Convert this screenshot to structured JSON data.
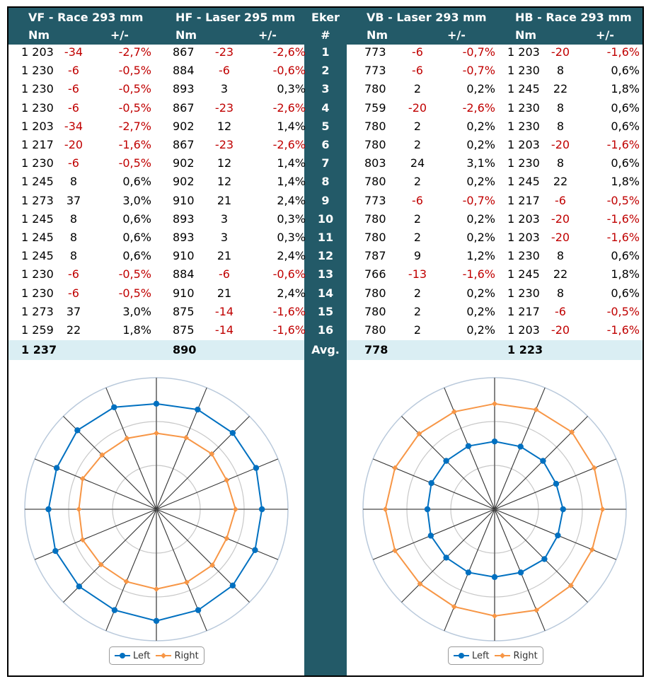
{
  "headers": {
    "vf_title": "VF - Race 293 mm",
    "hf_title": "HF - Laser 295 mm",
    "eker": "Eker",
    "vb_title": "VB - Laser 293 mm",
    "hb_title": "HB - Race 293 mm",
    "nm": "Nm",
    "pm": "+/-",
    "hash": "#"
  },
  "rows": [
    {
      "n": "1",
      "vf": [
        "1 203",
        "-34",
        "-2,7%"
      ],
      "hf": [
        "867",
        "-23",
        "-2,6%"
      ],
      "vb": [
        "773",
        "-6",
        "-0,7%"
      ],
      "hb": [
        "1 203",
        "-20",
        "-1,6%"
      ]
    },
    {
      "n": "2",
      "vf": [
        "1 230",
        "-6",
        "-0,5%"
      ],
      "hf": [
        "884",
        "-6",
        "-0,6%"
      ],
      "vb": [
        "773",
        "-6",
        "-0,7%"
      ],
      "hb": [
        "1 230",
        "8",
        "0,6%"
      ]
    },
    {
      "n": "3",
      "vf": [
        "1 230",
        "-6",
        "-0,5%"
      ],
      "hf": [
        "893",
        "3",
        "0,3%"
      ],
      "vb": [
        "780",
        "2",
        "0,2%"
      ],
      "hb": [
        "1 245",
        "22",
        "1,8%"
      ]
    },
    {
      "n": "4",
      "vf": [
        "1 230",
        "-6",
        "-0,5%"
      ],
      "hf": [
        "867",
        "-23",
        "-2,6%"
      ],
      "vb": [
        "759",
        "-20",
        "-2,6%"
      ],
      "hb": [
        "1 230",
        "8",
        "0,6%"
      ]
    },
    {
      "n": "5",
      "vf": [
        "1 203",
        "-34",
        "-2,7%"
      ],
      "hf": [
        "902",
        "12",
        "1,4%"
      ],
      "vb": [
        "780",
        "2",
        "0,2%"
      ],
      "hb": [
        "1 230",
        "8",
        "0,6%"
      ]
    },
    {
      "n": "6",
      "vf": [
        "1 217",
        "-20",
        "-1,6%"
      ],
      "hf": [
        "867",
        "-23",
        "-2,6%"
      ],
      "vb": [
        "780",
        "2",
        "0,2%"
      ],
      "hb": [
        "1 203",
        "-20",
        "-1,6%"
      ]
    },
    {
      "n": "7",
      "vf": [
        "1 230",
        "-6",
        "-0,5%"
      ],
      "hf": [
        "902",
        "12",
        "1,4%"
      ],
      "vb": [
        "803",
        "24",
        "3,1%"
      ],
      "hb": [
        "1 230",
        "8",
        "0,6%"
      ]
    },
    {
      "n": "8",
      "vf": [
        "1 245",
        "8",
        "0,6%"
      ],
      "hf": [
        "902",
        "12",
        "1,4%"
      ],
      "vb": [
        "780",
        "2",
        "0,2%"
      ],
      "hb": [
        "1 245",
        "22",
        "1,8%"
      ]
    },
    {
      "n": "9",
      "vf": [
        "1 273",
        "37",
        "3,0%"
      ],
      "hf": [
        "910",
        "21",
        "2,4%"
      ],
      "vb": [
        "773",
        "-6",
        "-0,7%"
      ],
      "hb": [
        "1 217",
        "-6",
        "-0,5%"
      ]
    },
    {
      "n": "10",
      "vf": [
        "1 245",
        "8",
        "0,6%"
      ],
      "hf": [
        "893",
        "3",
        "0,3%"
      ],
      "vb": [
        "780",
        "2",
        "0,2%"
      ],
      "hb": [
        "1 203",
        "-20",
        "-1,6%"
      ]
    },
    {
      "n": "11",
      "vf": [
        "1 245",
        "8",
        "0,6%"
      ],
      "hf": [
        "893",
        "3",
        "0,3%"
      ],
      "vb": [
        "780",
        "2",
        "0,2%"
      ],
      "hb": [
        "1 203",
        "-20",
        "-1,6%"
      ]
    },
    {
      "n": "12",
      "vf": [
        "1 245",
        "8",
        "0,6%"
      ],
      "hf": [
        "910",
        "21",
        "2,4%"
      ],
      "vb": [
        "787",
        "9",
        "1,2%"
      ],
      "hb": [
        "1 230",
        "8",
        "0,6%"
      ]
    },
    {
      "n": "13",
      "vf": [
        "1 230",
        "-6",
        "-0,5%"
      ],
      "hf": [
        "884",
        "-6",
        "-0,6%"
      ],
      "vb": [
        "766",
        "-13",
        "-1,6%"
      ],
      "hb": [
        "1 245",
        "22",
        "1,8%"
      ]
    },
    {
      "n": "14",
      "vf": [
        "1 230",
        "-6",
        "-0,5%"
      ],
      "hf": [
        "910",
        "21",
        "2,4%"
      ],
      "vb": [
        "780",
        "2",
        "0,2%"
      ],
      "hb": [
        "1 230",
        "8",
        "0,6%"
      ]
    },
    {
      "n": "15",
      "vf": [
        "1 273",
        "37",
        "3,0%"
      ],
      "hf": [
        "875",
        "-14",
        "-1,6%"
      ],
      "vb": [
        "780",
        "2",
        "0,2%"
      ],
      "hb": [
        "1 217",
        "-6",
        "-0,5%"
      ]
    },
    {
      "n": "16",
      "vf": [
        "1 259",
        "22",
        "1,8%"
      ],
      "hf": [
        "875",
        "-14",
        "-1,6%"
      ],
      "vb": [
        "780",
        "2",
        "0,2%"
      ],
      "hb": [
        "1 203",
        "-20",
        "-1,6%"
      ]
    }
  ],
  "averages": {
    "label": "Avg.",
    "vf": "1 237",
    "hf": "890",
    "vb": "778",
    "hb": "1 223"
  },
  "colors": {
    "header": "#235a68",
    "avg_bg": "#daeef3",
    "negative": "#c00000",
    "left": "#0070c0",
    "right": "#f79646"
  },
  "chart_data": [
    {
      "type": "radar",
      "spokes": 16,
      "rmax": 1500,
      "legend_position": "bottom",
      "series": [
        {
          "name": "Left",
          "values": [
            1203,
            1230,
            1230,
            1230,
            1203,
            1217,
            1230,
            1245,
            1273,
            1245,
            1245,
            1245,
            1230,
            1230,
            1273,
            1259
          ]
        },
        {
          "name": "Right",
          "values": [
            867,
            884,
            893,
            867,
            902,
            867,
            902,
            902,
            910,
            893,
            893,
            910,
            884,
            910,
            875,
            875
          ]
        }
      ]
    },
    {
      "type": "radar",
      "spokes": 16,
      "rmax": 1500,
      "legend_position": "bottom",
      "series": [
        {
          "name": "Left",
          "values": [
            773,
            773,
            780,
            759,
            780,
            780,
            803,
            780,
            773,
            780,
            780,
            787,
            766,
            780,
            780,
            780
          ]
        },
        {
          "name": "Right",
          "values": [
            1203,
            1230,
            1245,
            1230,
            1230,
            1203,
            1230,
            1245,
            1217,
            1203,
            1203,
            1230,
            1245,
            1230,
            1217,
            1203
          ]
        }
      ]
    }
  ],
  "legend": {
    "left": "Left",
    "right": "Right"
  }
}
